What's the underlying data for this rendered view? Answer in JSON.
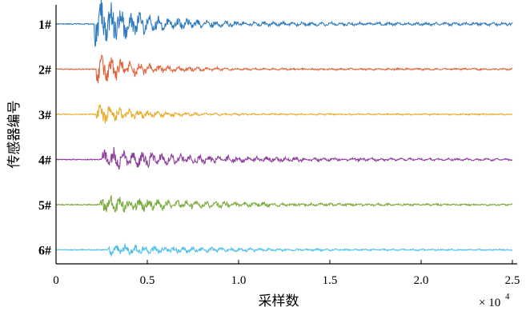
{
  "chart_data": {
    "type": "line",
    "title": "",
    "xlabel": "采样数",
    "ylabel": "传感器编号",
    "x_multiplier_label": "× 10",
    "x_multiplier_exponent": "4",
    "xlim": [
      0,
      2.5
    ],
    "xticks": [
      {
        "value": 0,
        "label": "0"
      },
      {
        "value": 0.5,
        "label": "0.5"
      },
      {
        "value": 1.0,
        "label": "1.0"
      },
      {
        "value": 1.5,
        "label": "1.5"
      },
      {
        "value": 2.0,
        "label": "2.0"
      },
      {
        "value": 2.5,
        "label": "2.5"
      }
    ],
    "grid": false,
    "legend": "none",
    "series": [
      {
        "name": "1#",
        "color": "#2f7bbf",
        "onset": 0.21,
        "amplitude": 1.0,
        "decay": 4.0,
        "residual": 0.06
      },
      {
        "name": "2#",
        "color": "#e0643c",
        "onset": 0.22,
        "amplitude": 0.6,
        "decay": 4.5,
        "residual": 0.05
      },
      {
        "name": "3#",
        "color": "#e8ad2a",
        "onset": 0.22,
        "amplitude": 0.45,
        "decay": 4.5,
        "residual": 0.04
      },
      {
        "name": "4#",
        "color": "#8e3f9c",
        "onset": 0.25,
        "amplitude": 0.45,
        "decay": 2.2,
        "residual": 0.08
      },
      {
        "name": "5#",
        "color": "#79ab3d",
        "onset": 0.24,
        "amplitude": 0.35,
        "decay": 2.0,
        "residual": 0.07
      },
      {
        "name": "6#",
        "color": "#4fc1e8",
        "onset": 0.28,
        "amplitude": 0.22,
        "decay": 1.8,
        "residual": 0.05
      }
    ]
  }
}
